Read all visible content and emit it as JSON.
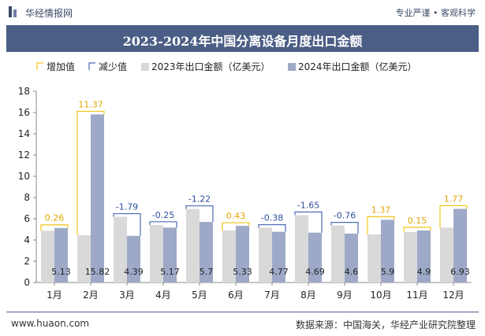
{
  "header": {
    "brand": "华经情报网",
    "tags": "专业严谨 • 客观科学"
  },
  "title": "2023-2024年中国分离设备月度出口金额",
  "legend": {
    "increase": "增加值",
    "decrease": "减少值",
    "series2023": "2023年出口金额（亿美元）",
    "series2024": "2024年出口金额（亿美元）"
  },
  "footer": {
    "website": "www.huaon.com",
    "source": "数据来源：中国海关，华经产业研究院整理"
  },
  "colors": {
    "bar2023": "#d9d9d9",
    "bar2024": "#9ea9c8",
    "increase": "#f2c417",
    "decrease": "#4b6cb7",
    "title_band": "#4b5e86"
  },
  "chart_data": {
    "type": "bar",
    "categories": [
      "1月",
      "2月",
      "3月",
      "4月",
      "5月",
      "6月",
      "7月",
      "8月",
      "9月",
      "10月",
      "11月",
      "12月"
    ],
    "series": [
      {
        "name": "2023年出口金额（亿美元）",
        "values": [
          4.87,
          4.45,
          6.18,
          5.42,
          6.92,
          4.9,
          5.15,
          6.34,
          5.36,
          4.53,
          4.75,
          5.16
        ]
      },
      {
        "name": "2024年出口金额（亿美元）",
        "values": [
          5.13,
          15.82,
          4.39,
          5.17,
          5.7,
          5.33,
          4.77,
          4.69,
          4.6,
          5.9,
          4.9,
          6.93
        ]
      }
    ],
    "changes": [
      0.26,
      11.37,
      -1.79,
      -0.25,
      -1.22,
      0.43,
      -0.38,
      -1.65,
      -0.76,
      1.37,
      0.15,
      1.77
    ],
    "data_labels": [
      "5.13",
      "15.82",
      "4.39",
      "5.17",
      "5.7",
      "5.33",
      "4.77",
      "4.69",
      "4.6",
      "5.9",
      "4.9",
      "6.93"
    ],
    "change_labels": [
      "0.26",
      "11.37",
      "-1.79",
      "-0.25",
      "-1.22",
      "0.43",
      "-0.38",
      "-1.65",
      "-0.76",
      "1.37",
      "0.15",
      "1.77"
    ],
    "ylim": [
      0,
      18
    ],
    "yticks": [
      0,
      2,
      4,
      6,
      8,
      10,
      12,
      14,
      16,
      18
    ],
    "grid": false,
    "legend_position": "top-left"
  }
}
